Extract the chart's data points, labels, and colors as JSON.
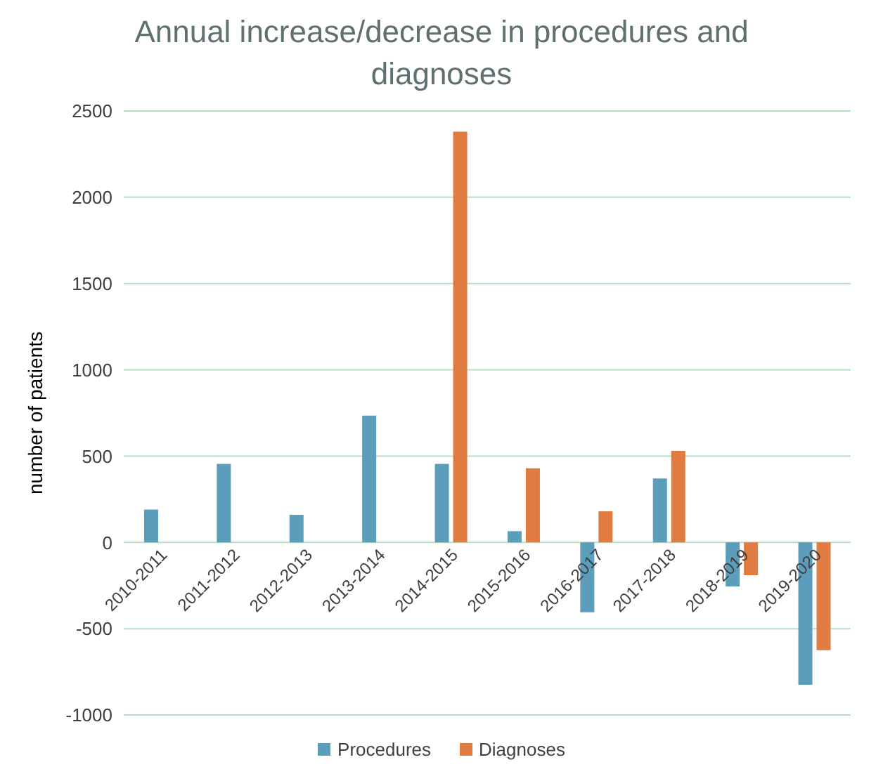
{
  "chart_data": {
    "type": "bar",
    "title": "Annual increase/decrease in procedures and diagnoses",
    "ylabel": "number of patients",
    "categories": [
      "2010-2011",
      "2011-2012",
      "2012-2013",
      "2013-2014",
      "2014-2015",
      "2015-2016",
      "2016-2017",
      "2017-2018",
      "2018-2019",
      "2019-2020"
    ],
    "series": [
      {
        "name": "Procedures",
        "color": "#5b9dbb",
        "values": [
          190,
          455,
          160,
          735,
          455,
          65,
          -405,
          370,
          -255,
          -825
        ]
      },
      {
        "name": "Diagnoses",
        "color": "#e07b42",
        "values": [
          null,
          null,
          null,
          null,
          2380,
          430,
          180,
          530,
          -190,
          -625
        ]
      }
    ],
    "ylim": [
      -1000,
      2500
    ],
    "yticks": [
      -1000,
      -500,
      0,
      500,
      1000,
      1500,
      2000,
      2500
    ],
    "grid": "y",
    "legend": "bottom"
  }
}
